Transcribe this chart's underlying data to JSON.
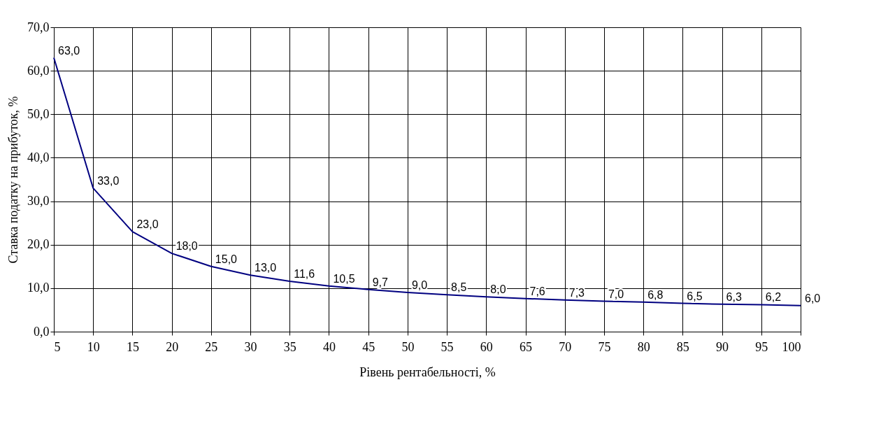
{
  "chart_data": {
    "type": "line",
    "xlabel": "Рівень рентабельності, %",
    "ylabel": "Ставка податку на прибуток, %",
    "x": [
      5,
      10,
      15,
      20,
      25,
      30,
      35,
      40,
      45,
      50,
      55,
      60,
      65,
      70,
      75,
      80,
      85,
      90,
      95,
      100
    ],
    "series": [
      {
        "color": "#000080",
        "values": [
          63.0,
          33.0,
          23.0,
          18.0,
          15.0,
          13.0,
          11.6,
          10.5,
          9.7,
          9.0,
          8.5,
          8.0,
          7.6,
          7.3,
          7.0,
          6.8,
          6.5,
          6.3,
          6.2,
          6.0
        ],
        "value_labels": [
          "63,0",
          "33,0",
          "23,0",
          "18,0",
          "15,0",
          "13,0",
          "11,6",
          "10,5",
          "9,7",
          "9,0",
          "8,5",
          "8,0",
          "7,6",
          "7,3",
          "7,0",
          "6,8",
          "6,5",
          "6,3",
          "6,2",
          "6,0"
        ]
      }
    ],
    "xlim": [
      5,
      100
    ],
    "xticks": [
      5,
      10,
      15,
      20,
      25,
      30,
      35,
      40,
      45,
      50,
      55,
      60,
      65,
      70,
      75,
      80,
      85,
      90,
      95,
      100
    ],
    "ylim": [
      0,
      70
    ],
    "yticks": [
      {
        "value": 0,
        "label": "0,0"
      },
      {
        "value": 10,
        "label": "10,0"
      },
      {
        "value": 20,
        "label": "20,0"
      },
      {
        "value": 30,
        "label": "30,0"
      },
      {
        "value": 40,
        "label": "40,0"
      },
      {
        "value": 50,
        "label": "50,0"
      },
      {
        "value": 60,
        "label": "60,0"
      },
      {
        "value": 70,
        "label": "70,0"
      }
    ],
    "grid": true,
    "marker": "none",
    "line_style": "solid"
  }
}
